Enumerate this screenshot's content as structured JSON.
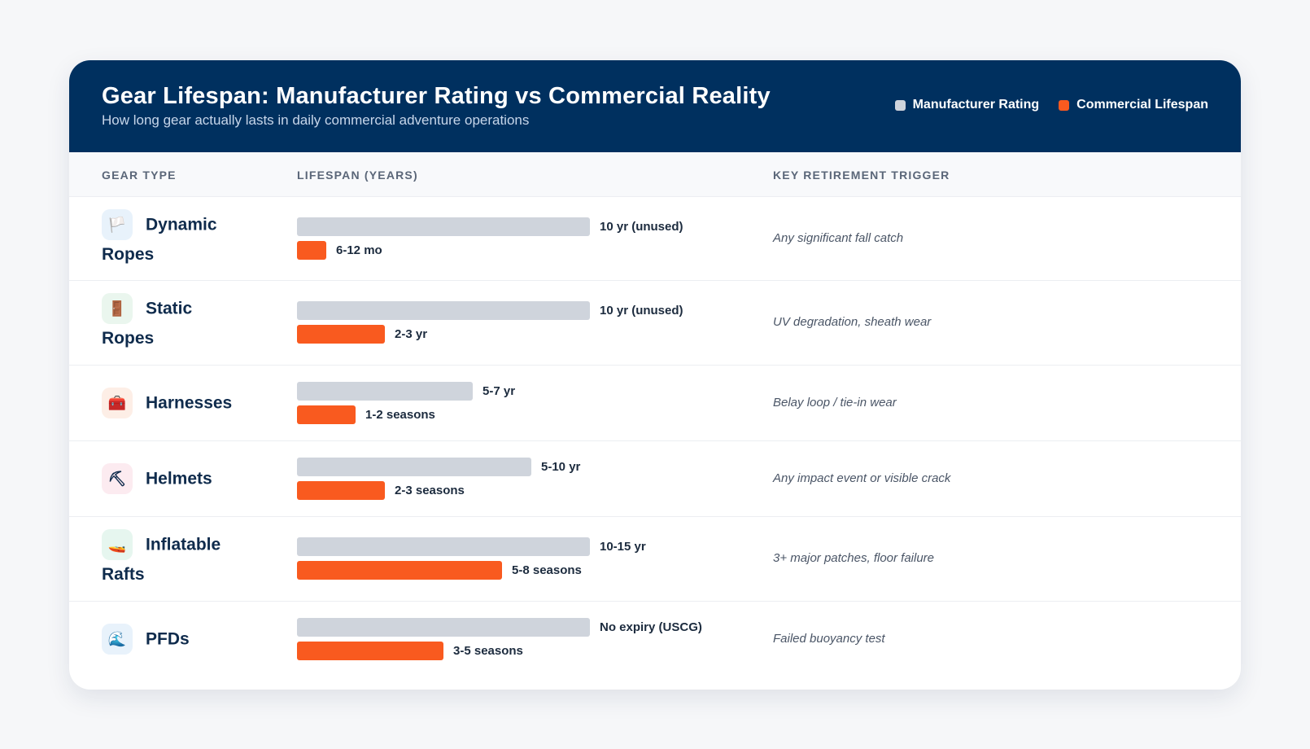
{
  "header": {
    "title": "Gear Lifespan: Manufacturer Rating vs Commercial Reality",
    "subtitle": "How long gear actually lasts in daily commercial adventure operations",
    "legend": [
      {
        "label": "Manufacturer Rating",
        "color": "#cfd4dc"
      },
      {
        "label": "Commercial Lifespan",
        "color": "#f95a1f"
      }
    ]
  },
  "columns": {
    "gear_type": "GEAR TYPE",
    "lifespan": "LIFESPAN (YEARS)",
    "trigger": "KEY RETIREMENT TRIGGER"
  },
  "colors": {
    "header_bg": "#00305f",
    "manufacturer": "#cfd4dc",
    "commercial": "#f95a1f"
  },
  "chart_data": {
    "type": "bar",
    "title": "Gear Lifespan: Manufacturer Rating vs Commercial Reality",
    "subtitle": "How long gear actually lasts in daily commercial adventure operations",
    "xlabel": "LIFESPAN (YEARS)",
    "categories": [
      "Dynamic Ropes",
      "Static Ropes",
      "Harnesses",
      "Helmets",
      "Inflatable Rafts",
      "PFDs"
    ],
    "xlim": [
      0,
      10
    ],
    "series": [
      {
        "name": "Manufacturer Rating",
        "values": [
          10,
          10,
          6,
          8,
          10,
          10
        ],
        "labels": [
          "10 yr (unused)",
          "10 yr (unused)",
          "5-7 yr",
          "5-10 yr",
          "10-15 yr",
          "No expiry (USCG)"
        ]
      },
      {
        "name": "Commercial Lifespan",
        "values": [
          1,
          3,
          2,
          3,
          7,
          5
        ],
        "labels": [
          "6-12 mo",
          "2-3 yr",
          "1-2 seasons",
          "2-3 seasons",
          "5-8 seasons",
          "3-5 seasons"
        ]
      }
    ],
    "legend": "top-right"
  },
  "rows": [
    {
      "name_first": "Dynamic",
      "name_rest": "Ropes",
      "icon": "🏳️",
      "icon_name": "flag-icon",
      "icon_bg": "#e8f2fb",
      "trigger": "Any significant fall catch"
    },
    {
      "name_first": "Static",
      "name_rest": "Ropes",
      "icon": "🚪",
      "icon_name": "door-icon",
      "icon_bg": "#eaf6ee",
      "trigger": "UV degradation, sheath wear"
    },
    {
      "name_first": "Harnesses",
      "name_rest": "",
      "icon": "🧰",
      "icon_name": "toolbox-icon",
      "icon_bg": "#fdeee6",
      "trigger": "Belay loop / tie-in wear"
    },
    {
      "name_first": "Helmets",
      "name_rest": "",
      "icon": "⛏",
      "icon_name": "pick-icon",
      "icon_bg": "#fcebf0",
      "trigger": "Any impact event or visible crack"
    },
    {
      "name_first": "Inflatable",
      "name_rest": "Rafts",
      "icon": "🚤",
      "icon_name": "boat-icon",
      "icon_bg": "#e6f6ef",
      "trigger": "3+ major patches, floor failure"
    },
    {
      "name_first": "PFDs",
      "name_rest": "",
      "icon": "🌊",
      "icon_name": "wave-icon",
      "icon_bg": "#e8f2fb",
      "trigger": "Failed buoyancy test"
    }
  ]
}
